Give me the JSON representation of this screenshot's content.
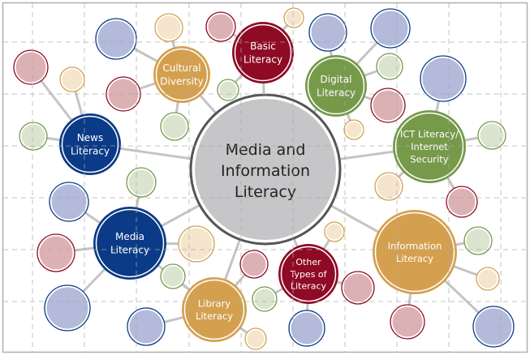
{
  "colors": {
    "blue": "#0b3a86",
    "blue_light": "#b3bada",
    "crimson": "#8e0a25",
    "crimson_light": "#dcb1b4",
    "gold": "#d4a04f",
    "gold_light": "#f4e5cc",
    "green": "#76994a",
    "green_light": "#dbe4cf",
    "center": "#c6c6c8",
    "center_border": "#555555",
    "line": "#c4c4c4",
    "grid": "#aaaaaa"
  },
  "center": {
    "lines": [
      "Media and",
      "Information",
      "Literacy"
    ]
  },
  "nodes": [
    {
      "id": "basic-literacy",
      "lines": [
        "Basic",
        "Literacy"
      ],
      "color": "crimson"
    },
    {
      "id": "cultural-diversity",
      "lines": [
        "Cultural",
        "Diversity"
      ],
      "color": "gold"
    },
    {
      "id": "digital-literacy",
      "lines": [
        "Digital",
        "Literacy"
      ],
      "color": "green"
    },
    {
      "id": "news-literacy",
      "lines": [
        "News",
        "Literacy"
      ],
      "color": "blue"
    },
    {
      "id": "ict-literacy",
      "lines": [
        "ICT Literacy/",
        "Internet",
        "Security"
      ],
      "color": "green"
    },
    {
      "id": "media-literacy",
      "lines": [
        "Media",
        "Literacy"
      ],
      "color": "blue"
    },
    {
      "id": "information-literacy",
      "lines": [
        "Information",
        "Literacy"
      ],
      "color": "gold"
    },
    {
      "id": "other-types-of-literacy",
      "lines": [
        "Other",
        "Types of",
        "Literacy"
      ],
      "color": "crimson"
    },
    {
      "id": "library-literacy",
      "lines": [
        "Library",
        "Literacy"
      ],
      "color": "gold"
    }
  ]
}
